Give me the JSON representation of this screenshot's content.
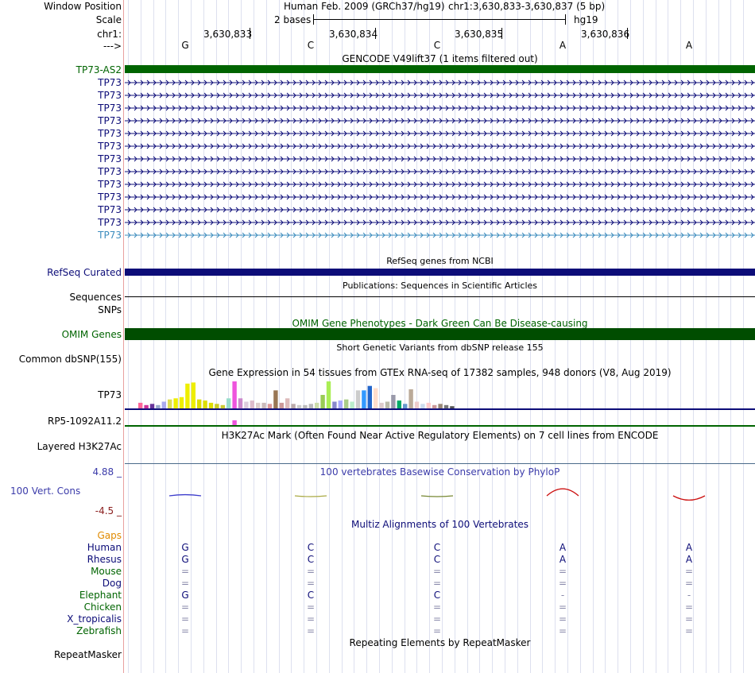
{
  "header": {
    "window_position_label": "Window Position",
    "assembly": "Human Feb. 2009 (GRCh37/hg19)",
    "position": "chr1:3,630,833-3,630,837 (5 bp)",
    "scale_label": "Scale",
    "scale_text": "2 bases",
    "scale_db": "hg19",
    "chrom_label": "chr1:",
    "ticks": [
      "3,630,833",
      "3,630,834",
      "3,630,835",
      "3,630,836"
    ],
    "strand_label": "--->"
  },
  "bases": [
    "G",
    "C",
    "C",
    "A",
    "A"
  ],
  "gencode": {
    "title": "GENCODE V49lift37 (1 items filtered out)",
    "genes": [
      "TP73-AS2",
      "TP73",
      "TP73",
      "TP73",
      "TP73",
      "TP73",
      "TP73",
      "TP73",
      "TP73",
      "TP73",
      "TP73",
      "TP73",
      "TP73",
      "TP73"
    ],
    "colors": {
      "lncrna": "#006400",
      "coding": "#0c0c78",
      "selected": "#3c8cbe"
    }
  },
  "refseq": {
    "title": "RefSeq genes from NCBI",
    "label": "RefSeq Curated",
    "color": "#0c0c78"
  },
  "publications": {
    "title": "Publications: Sequences in Scientific Articles",
    "labels": [
      "Sequences",
      "SNPs"
    ]
  },
  "omim": {
    "title": "OMIM Gene Phenotypes - Dark Green Can Be Disease-causing",
    "label": "OMIM Genes",
    "color": "#004d00"
  },
  "dbsnp": {
    "title": "Short Genetic Variants from dbSNP release 155",
    "label": "Common dbSNP(155)"
  },
  "gtex": {
    "title": "Gene Expression in 54 tissues from GTEx RNA-seq of 17382 samples, 948 donors (V8, Aug 2019)",
    "label1": "TP73",
    "label2": "RP5-1092A11.2",
    "values": [
      0.5,
      0.3,
      0.4,
      0.3,
      0.6,
      0.8,
      0.9,
      1.0,
      2.2,
      2.3,
      0.8,
      0.7,
      0.5,
      0.4,
      0.3,
      0.9,
      2.4,
      0.9,
      0.6,
      0.7,
      0.5,
      0.5,
      0.4,
      1.6,
      0.5,
      0.9,
      0.4,
      0.3,
      0.3,
      0.4,
      0.5,
      1.2,
      2.4,
      0.6,
      0.7,
      0.8,
      0.6,
      1.6,
      1.6,
      2.0,
      1.8,
      0.5,
      0.6,
      1.2,
      0.7,
      0.4,
      1.7,
      0.6,
      0.4,
      0.5,
      0.3,
      0.4,
      0.3,
      0.2
    ],
    "colors": [
      "#ff6699",
      "#cc3399",
      "#663399",
      "#99aacc",
      "#aaaaee",
      "#dddd55",
      "#eeee00",
      "#eeee00",
      "#eeee00",
      "#eeee00",
      "#dddd00",
      "#dddd00",
      "#dddd00",
      "#cccc22",
      "#cccc33",
      "#99ddcc",
      "#ee55dd",
      "#cc88cc",
      "#ddccdd",
      "#ddbbcc",
      "#ddcccc",
      "#ccbbbb",
      "#dd9999",
      "#997755",
      "#cc9999",
      "#ddbbbb",
      "#bbaaaa",
      "#cccccc",
      "#bbbbbb",
      "#bbbbbb",
      "#ccddaa",
      "#99cc55",
      "#aaee55",
      "#8888cc",
      "#aaaaff",
      "#aacc88",
      "#bbeecc",
      "#cccccc",
      "#3399ff",
      "#2266cc",
      "#ffddcc",
      "#ddcccc",
      "#bbbbaa",
      "#9999aa",
      "#00aa66",
      "#6699cc",
      "#bbaa99",
      "#eecccc",
      "#ccddee",
      "#ffcccc",
      "#cc9999",
      "#998877",
      "#777777",
      "#555555"
    ],
    "second_values": [
      1.0
    ],
    "second_colors": [
      "#ee55dd"
    ]
  },
  "h3k27ac": {
    "title": "H3K27Ac Mark (Often Found Near Active Regulatory Elements) on 7 cell lines from ENCODE",
    "label": "Layered H3K27Ac"
  },
  "phylop": {
    "title": "100 vertebrates Basewise Conservation by PhyloP",
    "label": "100 Vert. Cons",
    "max_label": "4.88 _",
    "min_label": "-4.5 _",
    "scores": [
      0.3,
      -0.2,
      -0.2,
      1.8,
      -1.1
    ],
    "score_colors": [
      "#3c3ccc",
      "#aaaa44",
      "#778833",
      "#cc1111",
      "#cc1111"
    ]
  },
  "multiz": {
    "title": "Multiz Alignments of 100 Vertebrates",
    "gaps_label": "Gaps",
    "species": [
      {
        "name": "Human",
        "bases": [
          "G",
          "C",
          "C",
          "A",
          "A"
        ],
        "color": "#0c0c78"
      },
      {
        "name": "Rhesus",
        "bases": [
          "G",
          "C",
          "C",
          "A",
          "A"
        ],
        "color": "#0c0c78"
      },
      {
        "name": "Mouse",
        "bases": [
          "=",
          "=",
          "=",
          "=",
          "="
        ],
        "color": "#006400"
      },
      {
        "name": "Dog",
        "bases": [
          "=",
          "=",
          "=",
          "=",
          "="
        ],
        "color": "#0c0c78"
      },
      {
        "name": "Elephant",
        "bases": [
          "G",
          "C",
          "C",
          "-",
          "-"
        ],
        "color": "#006400"
      },
      {
        "name": "Chicken",
        "bases": [
          "=",
          "=",
          "=",
          "=",
          "="
        ],
        "color": "#006400"
      },
      {
        "name": "X_tropicalis",
        "bases": [
          "=",
          "=",
          "=",
          "=",
          "="
        ],
        "color": "#0c0c78"
      },
      {
        "name": "Zebrafish",
        "bases": [
          "=",
          "=",
          "=",
          "=",
          "="
        ],
        "color": "#006400"
      }
    ]
  },
  "repeatmasker": {
    "title": "Repeating Elements by RepeatMasker",
    "label": "RepeatMasker"
  }
}
